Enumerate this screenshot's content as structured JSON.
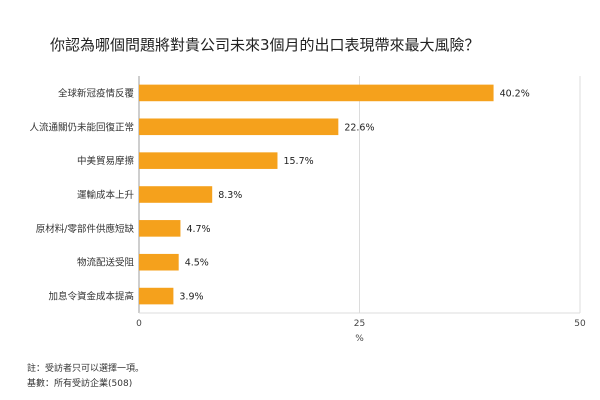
{
  "chart_data": {
    "type": "bar",
    "orientation": "horizontal",
    "title": "你認為哪個問題將對貴公司未來3個月的出口表現帶來最大風險？",
    "categories": [
      "全球新冠疫情反覆",
      "人流通關仍未能回復正常",
      "中美貿易摩擦",
      "運輸成本上升",
      "原材料/零部件供應短缺",
      "物流配送受阻",
      "加息令資金成本提高"
    ],
    "values": [
      40.2,
      22.6,
      15.7,
      8.3,
      4.7,
      4.5,
      3.9
    ],
    "value_labels": [
      "40.2%",
      "22.6%",
      "15.7%",
      "8.3%",
      "4.7%",
      "4.5%",
      "3.9%"
    ],
    "xlabel": "%",
    "xlim": [
      0,
      50
    ],
    "xticks": [
      0,
      25,
      50
    ],
    "xtick_labels": [
      "0",
      "25",
      "50"
    ],
    "grid": true,
    "bar_color": "#f5a11c"
  },
  "notes": {
    "line1": "註：受訪者只可以選擇一項。",
    "line2": "基數：所有受訪企業(508)"
  }
}
